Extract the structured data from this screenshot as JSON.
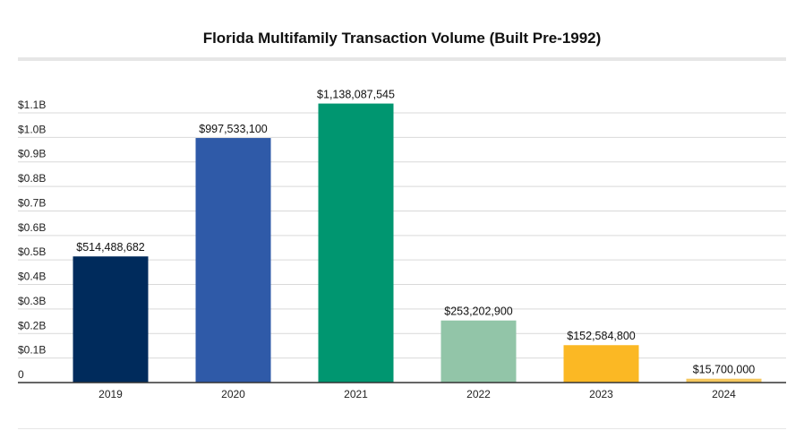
{
  "chart_data": {
    "type": "bar",
    "title": "Florida Multifamily Transaction Volume (Built Pre-1992)",
    "xlabel": "",
    "ylabel": "",
    "categories": [
      "2019",
      "2020",
      "2021",
      "2022",
      "2023",
      "2024"
    ],
    "values": [
      514488682,
      997533100,
      1138087545,
      253202900,
      152584800,
      15700000
    ],
    "data_labels": [
      "$514,488,682",
      "$997,533,100",
      "$1,138,087,545",
      "$253,202,900",
      "$152,584,800",
      "$15,700,000"
    ],
    "colors": [
      "#002b5c",
      "#2f5aa8",
      "#009670",
      "#92c5a8",
      "#fbb824",
      "#f5c75e"
    ],
    "ylim": [
      0,
      1150000000
    ],
    "yticks": [
      0,
      100000000,
      200000000,
      300000000,
      400000000,
      500000000,
      600000000,
      700000000,
      800000000,
      900000000,
      1000000000,
      1100000000
    ],
    "ytick_labels": [
      "0",
      "$0.1B",
      "$0.2B",
      "$0.3B",
      "$0.4B",
      "$0.5B",
      "$0.6B",
      "$0.7B",
      "$0.8B",
      "$0.9B",
      "$1.0B",
      "$1.1B"
    ],
    "grid": true,
    "legend": "none"
  }
}
